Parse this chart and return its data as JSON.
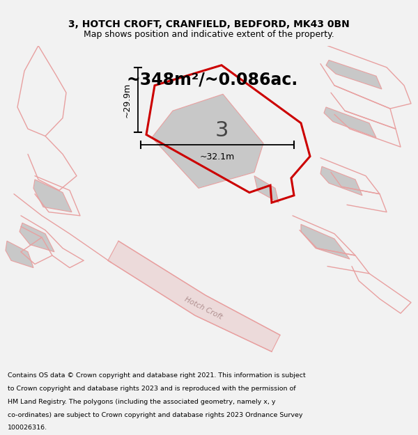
{
  "title_line1": "3, HOTCH CROFT, CRANFIELD, BEDFORD, MK43 0BN",
  "title_line2": "Map shows position and indicative extent of the property.",
  "area_text": "~348m²/~0.086ac.",
  "label_3": "3",
  "dim_height_label": "~29.9m",
  "dim_width_label": "~32.1m",
  "street_label": "Hotch Croft",
  "footer_lines": [
    "Contains OS data © Crown copyright and database right 2021. This information is subject",
    "to Crown copyright and database rights 2023 and is reproduced with the permission of",
    "HM Land Registry. The polygons (including the associated geometry, namely x, y",
    "co-ordinates) are subject to Crown copyright and database rights 2023 Ordnance Survey",
    "100026316."
  ],
  "bg_color": "#f2f2f2",
  "map_bg": "#ffffff",
  "highlight_color": "#cc0000",
  "light_red": "#e8a0a0",
  "grey_fill": "#c8c8c8",
  "road_fill": "#ecdada",
  "title_fontsize": 10,
  "subtitle_fontsize": 9,
  "area_fontsize": 17,
  "number_fontsize": 22,
  "footer_fontsize": 6.8
}
